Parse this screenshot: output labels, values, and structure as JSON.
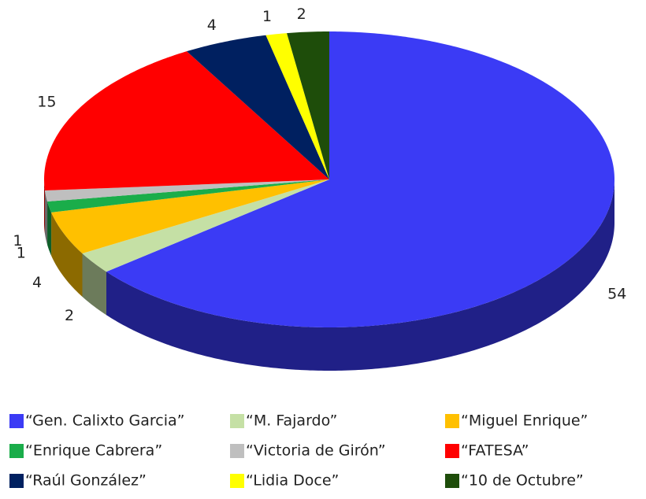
{
  "chart_data": {
    "type": "pie",
    "categories": [
      "“Gen. Calixto Garcia”",
      "“M. Fajardo”",
      "“Miguel Enrique”",
      "“Enrique Cabrera”",
      "“Victoria de Girón”",
      "“FATESA”",
      "“Raúl González”",
      "“Lidia Doce”",
      "“10 de Octubre”"
    ],
    "values": [
      54,
      2,
      4,
      1,
      1,
      15,
      4,
      1,
      2
    ],
    "colors": [
      "#3b3bf5",
      "#c5e0a5",
      "#ffc000",
      "#1aad4a",
      "#bfbfbf",
      "#ff0000",
      "#002060",
      "#ffff00",
      "#1e4d0a"
    ]
  }
}
